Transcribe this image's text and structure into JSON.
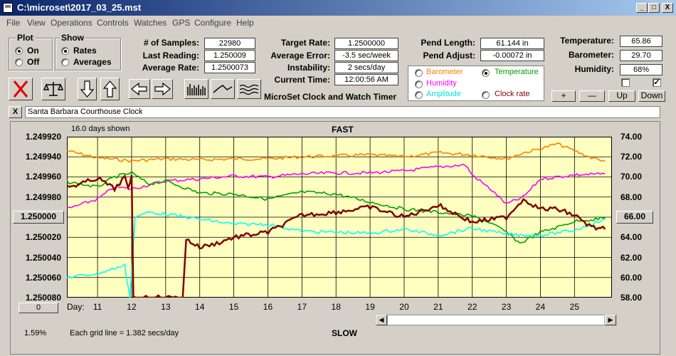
{
  "window": {
    "title": "C:\\microset\\2017_03_25.mst",
    "minimize": "_",
    "maximize": "□",
    "close": "X"
  },
  "menu": [
    "File",
    "View",
    "Operations",
    "Controls",
    "Watches",
    "GPS",
    "Configure",
    "Help"
  ],
  "plot_group": {
    "title": "Plot",
    "on": "On",
    "off": "Off",
    "selected": "On"
  },
  "show_group": {
    "title": "Show",
    "rates": "Rates",
    "averages": "Averages",
    "selected": "Rates"
  },
  "stats": {
    "samples_label": "# of Samples:",
    "samples": "22980",
    "last_reading_label": "Last Reading:",
    "last_reading": "1.250009",
    "average_rate_label": "Average Rate:",
    "average_rate": "1.2500073",
    "target_rate_label": "Target Rate:",
    "target_rate": "1.2500000",
    "average_error_label": "Average Error:",
    "average_error": "-3.5 sec/week",
    "instability_label": "Instability:",
    "instability": "2 secs/day",
    "current_time_label": "Current Time:",
    "current_time": "12:00:56 AM",
    "pend_length_label": "Pend Length:",
    "pend_length": "61.144 in",
    "pend_adjust_label": "Pend Adjust:",
    "pend_adjust": "-0.00072 in",
    "temperature_label": "Temperature:",
    "temperature": "65.86",
    "barometer_label": "Barometer:",
    "barometer": "29.70",
    "humidity_label": "Humidity:",
    "humidity": "68%"
  },
  "app_caption": "MicroSet Clock and Watch Timer",
  "channels": {
    "barometer": "Barometer",
    "temperature": "Temperature",
    "humidity": "Humidity",
    "amplitude": "Amplitude",
    "clock_rate": "Clock rate",
    "selected": "Temperature",
    "colors": {
      "barometer": "#ff8000",
      "temperature": "#00a000",
      "humidity": "#ff00ff",
      "amplitude": "#00ffff",
      "clock_rate": "#800000"
    }
  },
  "adjust_buttons": {
    "plus": "+",
    "minus": "—",
    "up": "Up",
    "down": "Down"
  },
  "clock_name": "Santa Barbara Courthouse Clock",
  "close_small": "X",
  "plot": {
    "days_shown": "16.0 days shown",
    "fast": "FAST",
    "slow": "SLOW",
    "grid_note": "Each grid line = 1.382 secs/day",
    "percent": "1.59%",
    "left_value_button": "1.250000",
    "right_value_button": "66.00",
    "bottom_left_button": "0",
    "day_label": "Day:"
  },
  "chart_data": {
    "type": "line",
    "xlabel": "Day:",
    "x_ticks": [
      "11",
      "12",
      "13",
      "14",
      "15",
      "16",
      "17",
      "18",
      "19",
      "20",
      "21",
      "22",
      "23",
      "24",
      "25"
    ],
    "y_left_ticks": [
      "1.249920",
      "1.249940",
      "1.249960",
      "1.249980",
      "1.250000",
      "1.250020",
      "1.250040",
      "1.250060",
      "1.250080"
    ],
    "y_right_ticks": [
      "74.00",
      "72.00",
      "70.00",
      "68.00",
      "66.00",
      "64.00",
      "62.00",
      "60.00",
      "58.00"
    ],
    "xlim": [
      10.1,
      26.1
    ],
    "ylim_left": [
      1.24992,
      1.25008
    ],
    "ylim_right": [
      58,
      74
    ],
    "grid": true,
    "series": [
      {
        "name": "Barometer",
        "color": "#ff8000",
        "x": [
          10.1,
          11,
          12,
          13,
          14,
          15,
          16,
          17,
          18,
          19,
          20,
          21,
          22,
          23,
          23.5,
          24,
          24.5,
          25,
          25.5,
          25.9
        ],
        "y": [
          72.6,
          71.9,
          71.6,
          71.8,
          71.7,
          71.8,
          71.8,
          72.0,
          72.1,
          72.2,
          72.0,
          72.4,
          72.2,
          71.8,
          72.4,
          72.8,
          73.3,
          72.6,
          71.9,
          71.6
        ]
      },
      {
        "name": "Humidity",
        "color": "#ff00ff",
        "x": [
          10.1,
          11,
          11.5,
          12,
          12.5,
          13,
          14,
          15,
          16,
          17,
          18,
          19,
          20,
          21,
          21.8,
          22,
          22.6,
          23,
          23.5,
          24,
          25,
          25.9
        ],
        "y": [
          66.8,
          67.8,
          69.0,
          68.8,
          69.2,
          69.6,
          69.8,
          70.1,
          70.0,
          70.3,
          70.4,
          70.4,
          70.6,
          71.0,
          71.2,
          70.2,
          68.6,
          67.3,
          68.0,
          69.8,
          70.2,
          70.3
        ]
      },
      {
        "name": "Temperature",
        "color": "#00a000",
        "x": [
          10.1,
          11,
          11.5,
          12,
          12.5,
          13,
          14,
          15,
          16,
          17,
          18,
          19,
          20,
          21,
          22,
          22.5,
          23,
          23.4,
          24,
          24.5,
          25,
          25.9
        ],
        "y": [
          69.5,
          69.0,
          70.0,
          70.4,
          69.3,
          69.6,
          68.4,
          68.3,
          67.8,
          68.5,
          68.3,
          67.5,
          66.8,
          66.5,
          66.1,
          65.5,
          64.5,
          63.4,
          64.5,
          65.0,
          65.6,
          65.9
        ]
      },
      {
        "name": "Amplitude",
        "color": "#00ffff",
        "x": [
          10.1,
          11,
          11.8,
          11.85,
          11.95,
          12.1,
          12.5,
          13,
          14,
          15,
          16,
          17,
          18,
          19,
          20,
          21,
          22,
          23,
          24,
          25,
          25.9
        ],
        "y": [
          60.0,
          60.4,
          61.2,
          60.0,
          58.0,
          66.0,
          66.5,
          66.3,
          65.8,
          65.3,
          65.3,
          64.6,
          64.5,
          64.4,
          64.8,
          64.2,
          64.9,
          64.3,
          64.2,
          64.7,
          65.8
        ]
      },
      {
        "name": "Clock rate",
        "color": "#800000",
        "x": [
          10.1,
          10.5,
          11,
          11.5,
          11.8,
          11.9,
          12.0,
          12.05,
          12.2,
          13,
          13.5,
          13.6,
          14,
          14.5,
          15,
          16,
          17,
          18,
          19,
          20,
          21,
          22,
          23,
          23.5,
          24,
          24.5,
          25,
          25.5,
          25.9
        ],
        "y": [
          1.24997,
          1.249967,
          1.249961,
          1.249972,
          1.24996,
          1.249973,
          1.249958,
          1.25008,
          1.25008,
          1.25008,
          1.25008,
          1.250022,
          1.25003,
          1.250026,
          1.25002,
          1.250015,
          1.249998,
          1.249995,
          1.24999,
          1.25,
          1.249988,
          1.250005,
          1.25,
          1.249982,
          1.249992,
          1.249992,
          1.249998,
          1.25001,
          1.250012
        ]
      }
    ]
  }
}
